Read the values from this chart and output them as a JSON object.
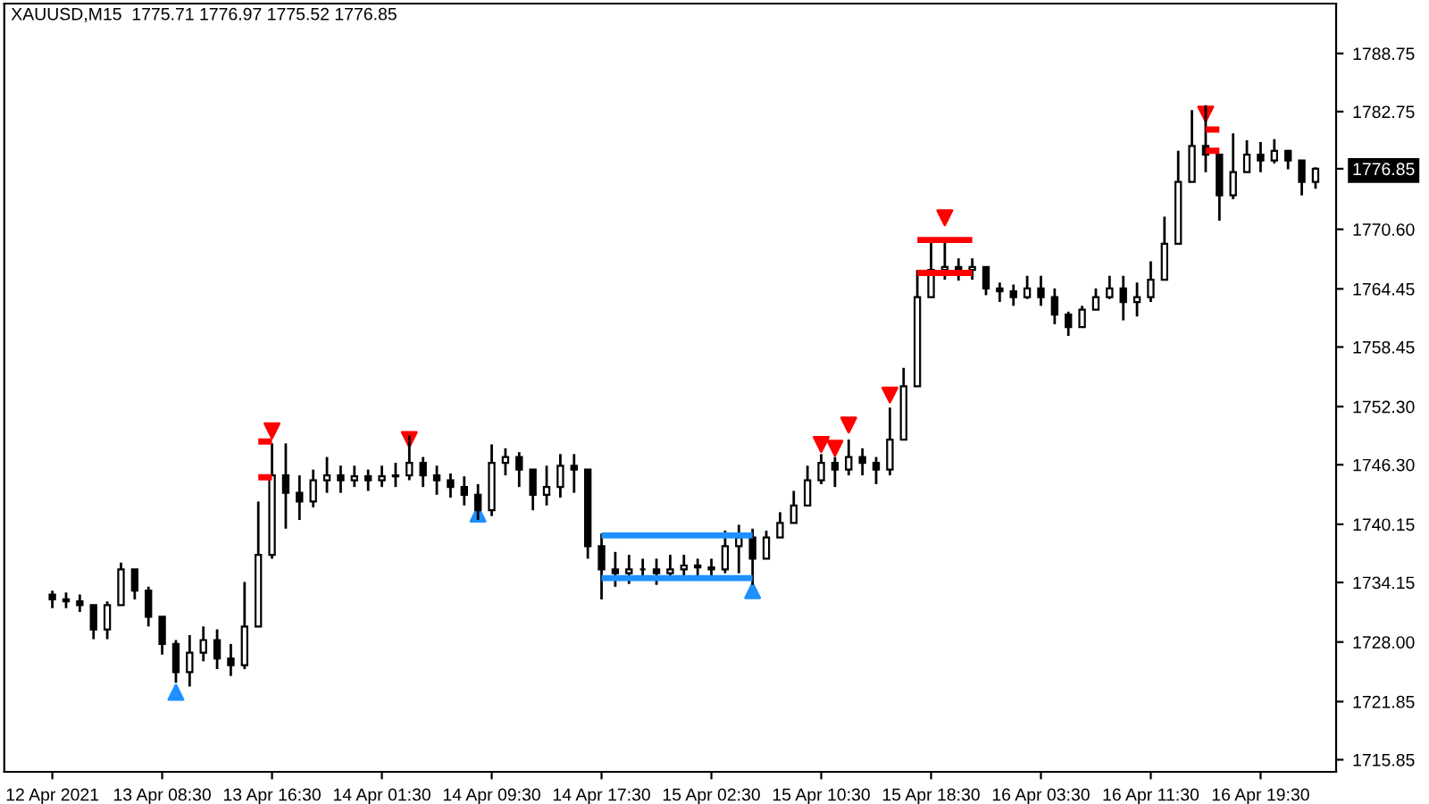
{
  "chart_data": {
    "type": "candlestick",
    "title": "XAUUSD,M15  1775.71 1776.97 1775.52 1776.85",
    "categories": [
      "12 Apr 2021",
      null,
      null,
      null,
      null,
      null,
      null,
      null,
      "13 Apr 08:30",
      null,
      null,
      null,
      null,
      null,
      null,
      null,
      "13 Apr 16:30",
      null,
      null,
      null,
      null,
      null,
      null,
      null,
      "14 Apr 01:30",
      null,
      null,
      null,
      null,
      null,
      null,
      null,
      "14 Apr 09:30",
      null,
      null,
      null,
      null,
      null,
      null,
      null,
      "14 Apr 17:30",
      null,
      null,
      null,
      null,
      null,
      null,
      null,
      "15 Apr 02:30",
      null,
      null,
      null,
      null,
      null,
      null,
      null,
      "15 Apr 10:30",
      null,
      null,
      null,
      null,
      null,
      null,
      null,
      "15 Apr 18:30",
      null,
      null,
      null,
      null,
      null,
      null,
      null,
      "16 Apr 03:30",
      null,
      null,
      null,
      null,
      null,
      null,
      null,
      "16 Apr 11:30",
      null,
      null,
      null,
      null,
      null,
      null,
      null,
      "16 Apr 19:30",
      null,
      null,
      null,
      null
    ],
    "ohlc": [
      [
        1732.9,
        1733.3,
        1731.5,
        1732.4
      ],
      [
        1732.4,
        1733.1,
        1731.5,
        1732.2
      ],
      [
        1732.2,
        1732.9,
        1731.1,
        1731.8
      ],
      [
        1731.8,
        1731.8,
        1728.3,
        1729.3
      ],
      [
        1729.3,
        1732.2,
        1728.3,
        1731.8
      ],
      [
        1731.8,
        1736.2,
        1731.8,
        1735.5
      ],
      [
        1735.5,
        1735.5,
        1732.4,
        1733.3
      ],
      [
        1733.3,
        1733.7,
        1729.6,
        1730.6
      ],
      [
        1730.6,
        1730.6,
        1726.7,
        1727.8
      ],
      [
        1727.8,
        1728.2,
        1723.8,
        1724.9
      ],
      [
        1724.9,
        1728.7,
        1723.4,
        1726.9
      ],
      [
        1726.9,
        1729.6,
        1726.0,
        1728.2
      ],
      [
        1728.2,
        1729.3,
        1725.2,
        1726.3
      ],
      [
        1726.3,
        1727.8,
        1724.5,
        1725.6
      ],
      [
        1725.6,
        1734.2,
        1725.2,
        1729.6
      ],
      [
        1729.6,
        1742.5,
        1729.6,
        1737.0
      ],
      [
        1737.0,
        1748.5,
        1736.6,
        1745.2
      ],
      [
        1745.2,
        1748.5,
        1739.7,
        1743.4
      ],
      [
        1743.4,
        1745.2,
        1740.6,
        1742.5
      ],
      [
        1742.5,
        1745.8,
        1741.9,
        1744.7
      ],
      [
        1744.7,
        1747.1,
        1743.4,
        1745.2
      ],
      [
        1745.2,
        1746.2,
        1743.4,
        1744.7
      ],
      [
        1744.7,
        1746.2,
        1744.0,
        1745.1
      ],
      [
        1745.1,
        1745.8,
        1743.6,
        1744.7
      ],
      [
        1744.7,
        1746.2,
        1744.0,
        1745.1
      ],
      [
        1745.1,
        1746.5,
        1744.0,
        1745.2
      ],
      [
        1745.2,
        1749.3,
        1744.7,
        1746.5
      ],
      [
        1746.5,
        1747.1,
        1744.0,
        1745.2
      ],
      [
        1745.2,
        1746.2,
        1743.2,
        1744.7
      ],
      [
        1744.7,
        1745.4,
        1742.9,
        1744.0
      ],
      [
        1744.0,
        1745.1,
        1742.1,
        1743.2
      ],
      [
        1743.2,
        1744.3,
        1740.6,
        1741.6
      ],
      [
        1741.6,
        1748.4,
        1741.0,
        1746.5
      ],
      [
        1746.5,
        1748.0,
        1745.2,
        1747.1
      ],
      [
        1747.1,
        1747.6,
        1744.0,
        1745.8
      ],
      [
        1745.8,
        1745.8,
        1741.6,
        1743.2
      ],
      [
        1743.2,
        1746.2,
        1742.1,
        1744.0
      ],
      [
        1744.0,
        1747.4,
        1742.9,
        1746.2
      ],
      [
        1746.2,
        1747.4,
        1743.4,
        1745.8
      ],
      [
        1745.8,
        1745.8,
        1736.6,
        1737.9
      ],
      [
        1737.9,
        1739.2,
        1732.4,
        1735.5
      ],
      [
        1735.5,
        1737.3,
        1733.7,
        1735.1
      ],
      [
        1735.1,
        1737.0,
        1734.0,
        1735.5
      ],
      [
        1735.5,
        1736.6,
        1734.4,
        1735.5
      ],
      [
        1735.5,
        1736.6,
        1733.9,
        1735.1
      ],
      [
        1735.1,
        1737.0,
        1734.4,
        1735.5
      ],
      [
        1735.5,
        1737.0,
        1734.8,
        1735.9
      ],
      [
        1735.9,
        1736.6,
        1734.8,
        1735.7
      ],
      [
        1735.7,
        1736.6,
        1734.8,
        1735.5
      ],
      [
        1735.5,
        1739.5,
        1735.1,
        1737.9
      ],
      [
        1737.9,
        1740.1,
        1735.1,
        1738.8
      ],
      [
        1738.8,
        1739.7,
        1733.9,
        1736.6
      ],
      [
        1736.6,
        1739.5,
        1736.6,
        1738.8
      ],
      [
        1738.8,
        1741.4,
        1738.8,
        1740.3
      ],
      [
        1740.3,
        1743.6,
        1740.3,
        1742.1
      ],
      [
        1742.1,
        1746.2,
        1742.1,
        1744.7
      ],
      [
        1744.7,
        1747.4,
        1744.3,
        1746.5
      ],
      [
        1746.5,
        1747.1,
        1744.0,
        1745.8
      ],
      [
        1745.8,
        1748.9,
        1745.2,
        1747.1
      ],
      [
        1747.1,
        1748.0,
        1745.2,
        1746.5
      ],
      [
        1746.5,
        1747.1,
        1744.3,
        1745.8
      ],
      [
        1745.8,
        1752.2,
        1745.2,
        1748.9
      ],
      [
        1748.9,
        1756.3,
        1748.9,
        1754.4
      ],
      [
        1754.4,
        1766.4,
        1754.4,
        1763.6
      ],
      [
        1763.6,
        1769.2,
        1763.6,
        1766.4
      ],
      [
        1766.4,
        1769.2,
        1765.4,
        1766.7
      ],
      [
        1766.7,
        1767.6,
        1765.3,
        1766.4
      ],
      [
        1766.4,
        1767.6,
        1765.4,
        1766.7
      ],
      [
        1766.7,
        1766.7,
        1763.8,
        1764.5
      ],
      [
        1764.5,
        1765.1,
        1763.1,
        1764.2
      ],
      [
        1764.2,
        1764.9,
        1762.7,
        1763.6
      ],
      [
        1763.6,
        1765.8,
        1763.4,
        1764.5
      ],
      [
        1764.5,
        1765.8,
        1762.7,
        1763.6
      ],
      [
        1763.6,
        1764.5,
        1760.8,
        1761.8
      ],
      [
        1761.8,
        1762.1,
        1759.6,
        1760.5
      ],
      [
        1760.5,
        1762.7,
        1760.5,
        1762.3
      ],
      [
        1762.3,
        1764.5,
        1762.3,
        1763.6
      ],
      [
        1763.6,
        1765.8,
        1763.4,
        1764.5
      ],
      [
        1764.5,
        1765.8,
        1761.2,
        1763.1
      ],
      [
        1763.1,
        1765.1,
        1761.6,
        1763.6
      ],
      [
        1763.6,
        1767.3,
        1763.1,
        1765.4
      ],
      [
        1765.4,
        1771.9,
        1765.4,
        1769.1
      ],
      [
        1769.1,
        1778.7,
        1769.1,
        1775.5
      ],
      [
        1775.5,
        1782.9,
        1775.5,
        1779.2
      ],
      [
        1779.2,
        1783.4,
        1776.5,
        1778.3
      ],
      [
        1778.3,
        1778.3,
        1771.5,
        1774.1
      ],
      [
        1774.1,
        1780.5,
        1773.7,
        1776.5
      ],
      [
        1776.5,
        1779.8,
        1776.5,
        1778.3
      ],
      [
        1778.3,
        1779.6,
        1776.5,
        1777.7
      ],
      [
        1777.7,
        1779.9,
        1777.4,
        1778.7
      ],
      [
        1778.7,
        1778.8,
        1776.8,
        1777.7
      ],
      [
        1777.7,
        1777.7,
        1774.1,
        1775.5
      ],
      [
        1775.5,
        1777.0,
        1774.8,
        1776.85
      ]
    ],
    "series": [
      {
        "type": "scatter",
        "marker": "triangle",
        "color": "#ff0000",
        "values": [
          null,
          null,
          null,
          null,
          null,
          null,
          null,
          null,
          null,
          null,
          null,
          null,
          null,
          null,
          null,
          null,
          1749.8,
          null,
          null,
          null,
          null,
          null,
          null,
          null,
          null,
          null,
          1748.9,
          null,
          null,
          null,
          null,
          null,
          null,
          null,
          null,
          null,
          null,
          null,
          null,
          null,
          null,
          null,
          null,
          null,
          null,
          null,
          null,
          null,
          null,
          null,
          null,
          null,
          null,
          null,
          null,
          null,
          1748.4,
          1748.0,
          1750.4,
          null,
          null,
          1753.5,
          null,
          null,
          null,
          1771.8,
          null,
          null,
          null,
          null,
          null,
          null,
          null,
          null,
          null,
          null,
          null,
          null,
          null,
          null,
          null,
          null,
          null,
          null,
          1782.5,
          null,
          null,
          null,
          null,
          null,
          null,
          null,
          null
        ]
      },
      {
        "type": "scatter",
        "marker": "triangle",
        "color": "#1e90ff",
        "values": [
          null,
          null,
          null,
          null,
          null,
          null,
          null,
          null,
          null,
          1722.8,
          null,
          null,
          null,
          null,
          null,
          null,
          null,
          null,
          null,
          null,
          null,
          null,
          null,
          null,
          null,
          null,
          null,
          null,
          null,
          null,
          null,
          1741.2,
          null,
          null,
          null,
          null,
          null,
          null,
          null,
          null,
          null,
          null,
          null,
          null,
          null,
          null,
          null,
          null,
          null,
          null,
          null,
          1733.3,
          null,
          null,
          null,
          null,
          null,
          null,
          null,
          null,
          null,
          null,
          null,
          null,
          null,
          null,
          null,
          null,
          null,
          null,
          null,
          null,
          null,
          null,
          null,
          null,
          null,
          null,
          null,
          null,
          null,
          null,
          null,
          null,
          null,
          null,
          null,
          null,
          null,
          null,
          null,
          null,
          null
        ]
      },
      {
        "type": "line",
        "color": "#1e90ff",
        "values": [
          null,
          null,
          null,
          null,
          null,
          null,
          null,
          null,
          null,
          null,
          null,
          null,
          null,
          null,
          null,
          null,
          null,
          null,
          null,
          null,
          null,
          null,
          null,
          null,
          null,
          null,
          null,
          null,
          null,
          null,
          null,
          null,
          null,
          null,
          null,
          null,
          null,
          null,
          null,
          null,
          1739.0,
          1739.0,
          1739.0,
          1739.0,
          1739.0,
          1739.0,
          1739.0,
          1739.0,
          1739.0,
          1739.0,
          1739.0,
          1739.0,
          null,
          null,
          null,
          null,
          null,
          null,
          null,
          null,
          null,
          null,
          null,
          null,
          null,
          null,
          null,
          null,
          null,
          null,
          null,
          null,
          null,
          null,
          null,
          null,
          null,
          null,
          null,
          null,
          null,
          null,
          null,
          null,
          null,
          null,
          null,
          null,
          null,
          null,
          null,
          null,
          null
        ]
      },
      {
        "type": "line",
        "color": "#1e90ff",
        "values": [
          null,
          null,
          null,
          null,
          null,
          null,
          null,
          null,
          null,
          null,
          null,
          null,
          null,
          null,
          null,
          null,
          null,
          null,
          null,
          null,
          null,
          null,
          null,
          null,
          null,
          null,
          null,
          null,
          null,
          null,
          null,
          null,
          null,
          null,
          null,
          null,
          null,
          null,
          null,
          null,
          1734.6,
          1734.6,
          1734.6,
          1734.6,
          1734.6,
          1734.6,
          1734.6,
          1734.6,
          1734.6,
          1734.6,
          1734.6,
          1734.6,
          null,
          null,
          null,
          null,
          null,
          null,
          null,
          null,
          null,
          null,
          null,
          null,
          null,
          null,
          null,
          null,
          null,
          null,
          null,
          null,
          null,
          null,
          null,
          null,
          null,
          null,
          null,
          null,
          null,
          null,
          null,
          null,
          null,
          null,
          null,
          null,
          null,
          null,
          null,
          null,
          null
        ]
      },
      {
        "type": "line",
        "color": "#ff0000",
        "values": [
          null,
          null,
          null,
          null,
          null,
          null,
          null,
          null,
          null,
          null,
          null,
          null,
          null,
          null,
          null,
          1748.7,
          1748.7,
          null,
          null,
          null,
          null,
          null,
          null,
          null,
          null,
          null,
          null,
          null,
          null,
          null,
          null,
          null,
          null,
          null,
          null,
          null,
          null,
          null,
          null,
          null,
          null,
          null,
          null,
          null,
          null,
          null,
          null,
          null,
          null,
          null,
          null,
          null,
          null,
          null,
          null,
          null,
          null,
          null,
          null,
          null,
          null,
          null,
          null,
          1769.5,
          1769.5,
          1769.5,
          1769.5,
          1769.5,
          null,
          null,
          null,
          null,
          null,
          null,
          null,
          null,
          null,
          null,
          null,
          null,
          null,
          null,
          null,
          null,
          1780.9,
          1780.9,
          null,
          null,
          null,
          null,
          null,
          null,
          null
        ]
      },
      {
        "type": "line",
        "color": "#ff0000",
        "values": [
          null,
          null,
          null,
          null,
          null,
          null,
          null,
          null,
          null,
          null,
          null,
          null,
          null,
          null,
          null,
          1745.0,
          1745.0,
          null,
          null,
          null,
          null,
          null,
          null,
          null,
          null,
          null,
          null,
          null,
          null,
          null,
          null,
          null,
          null,
          null,
          null,
          null,
          null,
          null,
          null,
          null,
          null,
          null,
          null,
          null,
          null,
          null,
          null,
          null,
          null,
          null,
          null,
          null,
          null,
          null,
          null,
          null,
          null,
          null,
          null,
          null,
          null,
          null,
          null,
          1766.1,
          1766.1,
          1766.1,
          1766.1,
          1766.1,
          null,
          null,
          null,
          null,
          null,
          null,
          null,
          null,
          null,
          null,
          null,
          null,
          null,
          null,
          null,
          null,
          1778.7,
          1778.7,
          null,
          null,
          null,
          null,
          null,
          null,
          null
        ]
      }
    ],
    "ylim": [
      1714.6,
      1793.9
    ],
    "yticks": [
      {
        "value": 1788.75,
        "label": "1788.75"
      },
      {
        "value": 1782.75,
        "label": "1782.75"
      },
      {
        "value": 1776.85,
        "label": "1776.85"
      },
      {
        "value": 1770.6,
        "label": "1770.60"
      },
      {
        "value": 1764.45,
        "label": "1764.45"
      },
      {
        "value": 1758.45,
        "label": "1758.45"
      },
      {
        "value": 1752.3,
        "label": "1752.30"
      },
      {
        "value": 1746.3,
        "label": "1746.30"
      },
      {
        "value": 1740.15,
        "label": "1740.15"
      },
      {
        "value": 1734.15,
        "label": "1734.15"
      },
      {
        "value": 1728.0,
        "label": "1728.00"
      },
      {
        "value": 1721.85,
        "label": "1721.85"
      },
      {
        "value": 1715.85,
        "label": "1715.85"
      }
    ],
    "grid": false
  }
}
